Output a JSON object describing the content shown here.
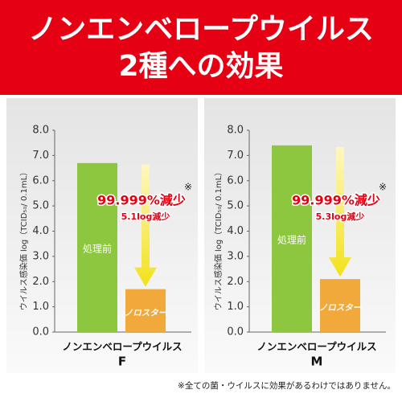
{
  "header": {
    "title_line1": "ノンエンベロープウイルス",
    "title_line2": "2種への効果"
  },
  "chart_data": [
    {
      "type": "bar",
      "ylabel": "ウイルス感染価 log（TCID₅₀/ 0.1mL）",
      "xlabel": "ノンエンベロープウイルス",
      "name": "F",
      "categories": [
        "処理前",
        "ノロスター"
      ],
      "values": [
        6.7,
        1.7
      ],
      "colors": [
        "#8dc63f",
        "#f2a93b"
      ],
      "ylim": [
        0,
        8
      ],
      "yticks": [
        {
          "value": 0,
          "label": "0.0"
        },
        {
          "value": 1,
          "label": "1.0"
        },
        {
          "value": 2,
          "label": "2.0"
        },
        {
          "value": 3,
          "label": "3.0"
        },
        {
          "value": 4,
          "label": "4.0"
        },
        {
          "value": 5,
          "label": "5.0"
        },
        {
          "value": 6,
          "label": "6.0"
        },
        {
          "value": 7,
          "label": "7.0"
        },
        {
          "value": 8,
          "label": "8.0"
        }
      ],
      "reduction": "99.999%減少",
      "note_mark": "※",
      "log_reduction": "5.1log減少"
    },
    {
      "type": "bar",
      "ylabel": "ウイルス感染価 log（TCID₅₀/ 0.1mL）",
      "xlabel": "ノンエンベロープウイルス",
      "name": "M",
      "categories": [
        "処理前",
        "ノロスター"
      ],
      "values": [
        7.4,
        2.1
      ],
      "colors": [
        "#8dc63f",
        "#f2a93b"
      ],
      "ylim": [
        0,
        8
      ],
      "yticks": [
        {
          "value": 0,
          "label": "0.0"
        },
        {
          "value": 1,
          "label": "1.0"
        },
        {
          "value": 2,
          "label": "2.0"
        },
        {
          "value": 3,
          "label": "3.0"
        },
        {
          "value": 4,
          "label": "4.0"
        },
        {
          "value": 5,
          "label": "5.0"
        },
        {
          "value": 6,
          "label": "6.0"
        },
        {
          "value": 7,
          "label": "7.0"
        },
        {
          "value": 8,
          "label": "8.0"
        }
      ],
      "reduction": "99.999%減少",
      "note_mark": "※",
      "log_reduction": "5.3log減少"
    }
  ],
  "footnote": "※全ての菌・ウイルスに効果があるわけではありません。"
}
